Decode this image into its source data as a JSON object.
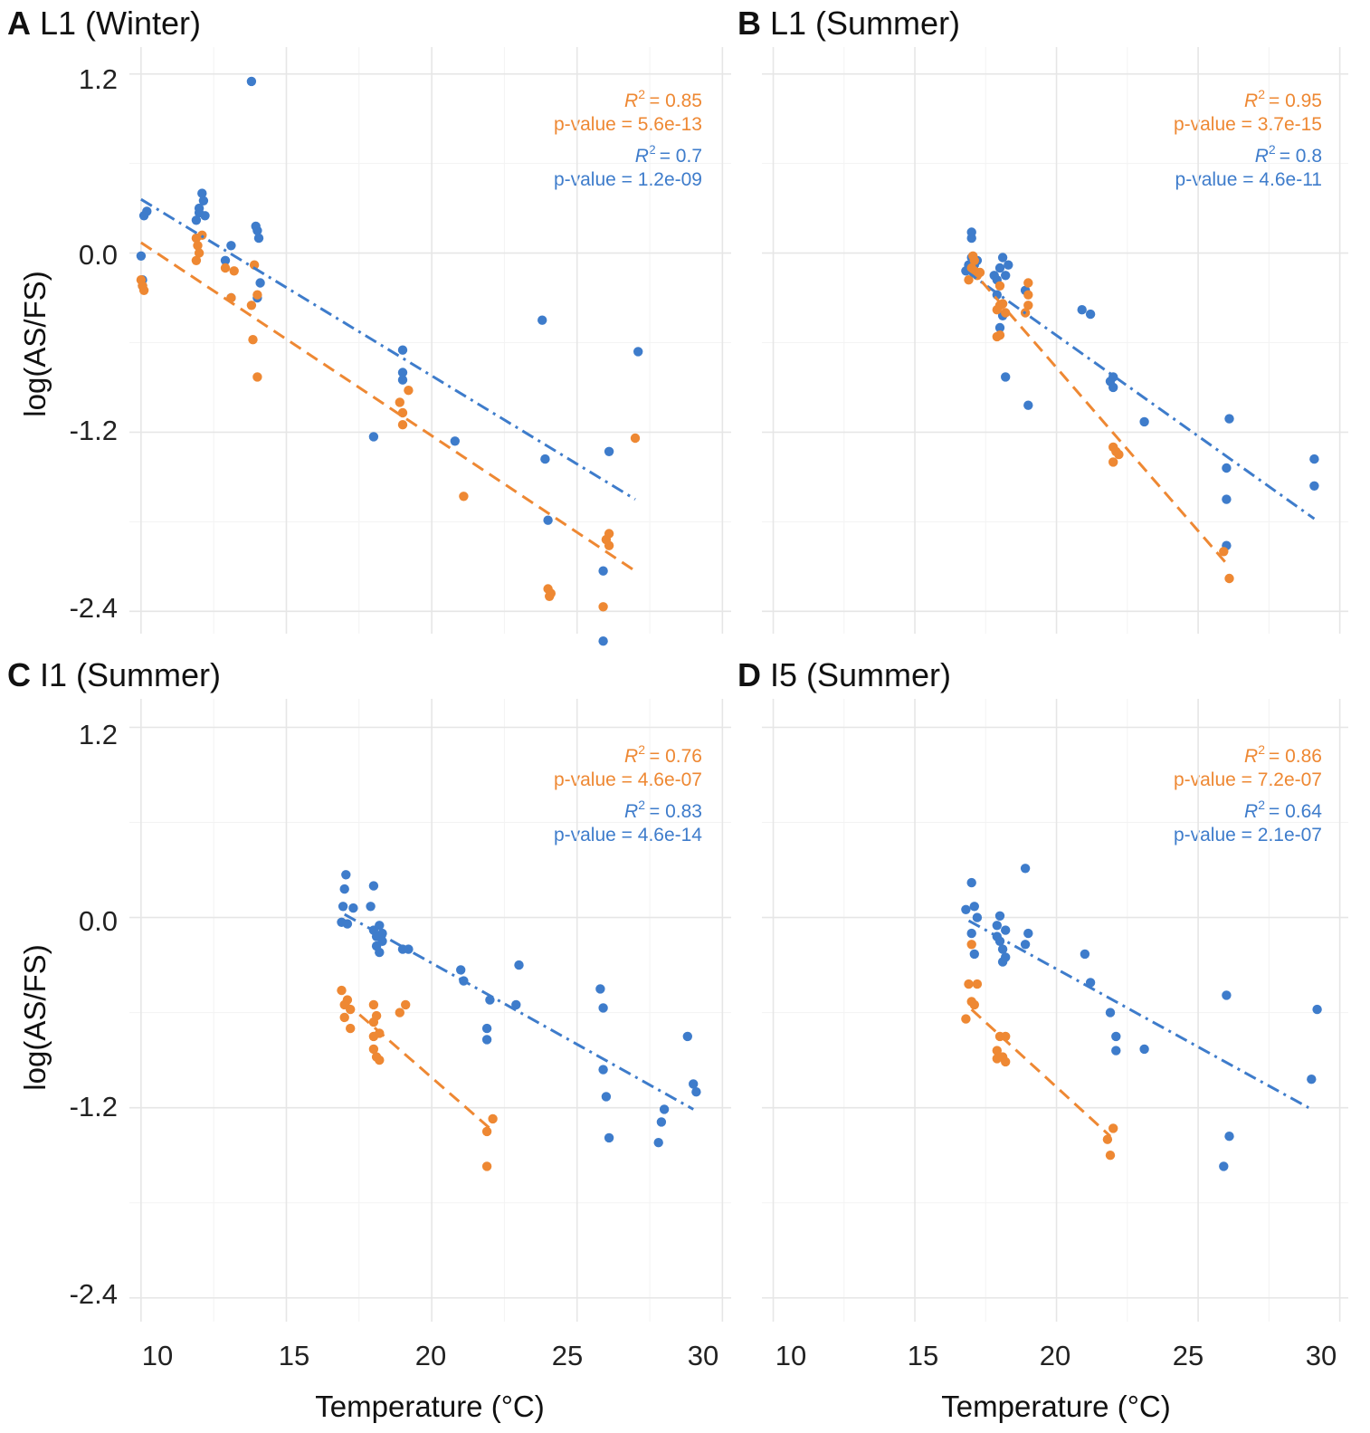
{
  "colors": {
    "orange": "#EE8833",
    "blue": "#3E7CCB",
    "grid": "#e6e6e6"
  },
  "figure": {
    "x_axis_title": "Temperature (°C)",
    "y_axis_title": "log(AS/FS)",
    "x_ticks": [
      "10",
      "15",
      "20",
      "25",
      "30"
    ],
    "y_ticks": [
      "1.2",
      "0.0",
      "-1.2",
      "-2.4"
    ]
  },
  "chart_data": [
    {
      "type": "scatter",
      "panel": "A",
      "title": "L1 (Winter)",
      "xlabel": "Temperature (°C)",
      "ylabel": "log(AS/FS)",
      "xlim": [
        9.6,
        30.3
      ],
      "ylim": [
        -2.55,
        1.38
      ],
      "legend_position": "top-right",
      "stats": {
        "orange": {
          "r2": "= 0.85",
          "p": "p-value = 5.6e-13"
        },
        "blue": {
          "r2": "= 0.7",
          "p": "p-value = 1.2e-09"
        }
      },
      "series": [
        {
          "name": "blue",
          "line_style": "dotdash",
          "fit": {
            "x": [
              10,
              27
            ],
            "y": [
              0.36,
              -1.65
            ]
          },
          "points": [
            [
              10,
              -0.02
            ],
            [
              10.05,
              -0.18
            ],
            [
              10.1,
              0.25
            ],
            [
              10.2,
              0.28
            ],
            [
              10.05,
              -0.22
            ],
            [
              11.9,
              0.22
            ],
            [
              12.0,
              0.27
            ],
            [
              12.1,
              0.4
            ],
            [
              12.15,
              0.35
            ],
            [
              12.0,
              0.3
            ],
            [
              12.2,
              0.25
            ],
            [
              12.9,
              -0.05
            ],
            [
              13.1,
              0.05
            ],
            [
              13.1,
              -0.3
            ],
            [
              13.8,
              1.15
            ],
            [
              13.95,
              0.18
            ],
            [
              14.0,
              0.15
            ],
            [
              14.05,
              0.1
            ],
            [
              14.0,
              -0.3
            ],
            [
              14.1,
              -0.2
            ],
            [
              18.0,
              -1.23
            ],
            [
              19.0,
              -0.65
            ],
            [
              19.0,
              -0.8
            ],
            [
              19.0,
              -0.85
            ],
            [
              20.8,
              -1.26
            ],
            [
              23.8,
              -0.45
            ],
            [
              23.9,
              -1.38
            ],
            [
              24.0,
              -1.79
            ],
            [
              25.9,
              -2.6
            ],
            [
              25.9,
              -2.13
            ],
            [
              26.1,
              -1.33
            ],
            [
              27.1,
              -0.66
            ]
          ]
        },
        {
          "name": "orange",
          "line_style": "dashed",
          "fit": {
            "x": [
              10,
              27
            ],
            "y": [
              0.07,
              -2.13
            ]
          },
          "points": [
            [
              10.0,
              -0.18
            ],
            [
              10.05,
              -0.22
            ],
            [
              10.1,
              -0.25
            ],
            [
              11.9,
              0.1
            ],
            [
              11.95,
              0.05
            ],
            [
              12.0,
              0.0
            ],
            [
              12.1,
              0.12
            ],
            [
              11.9,
              -0.05
            ],
            [
              12.9,
              -0.1
            ],
            [
              13.1,
              -0.3
            ],
            [
              13.2,
              -0.12
            ],
            [
              13.8,
              -0.35
            ],
            [
              13.85,
              -0.58
            ],
            [
              13.9,
              -0.08
            ],
            [
              14.0,
              -0.28
            ],
            [
              14.0,
              -0.83
            ],
            [
              18.9,
              -1.0
            ],
            [
              19.0,
              -1.07
            ],
            [
              19.0,
              -1.15
            ],
            [
              19.2,
              -0.92
            ],
            [
              21.1,
              -1.63
            ],
            [
              24.0,
              -2.25
            ],
            [
              24.05,
              -2.3
            ],
            [
              24.1,
              -2.28
            ],
            [
              25.9,
              -2.37
            ],
            [
              26.0,
              -1.92
            ],
            [
              26.1,
              -1.96
            ],
            [
              26.1,
              -1.88
            ],
            [
              27.0,
              -1.24
            ]
          ]
        }
      ]
    },
    {
      "type": "scatter",
      "panel": "B",
      "title": "L1 (Summer)",
      "xlabel": "Temperature (°C)",
      "ylabel": "",
      "xlim": [
        9.6,
        30.3
      ],
      "ylim": [
        -2.55,
        1.38
      ],
      "legend_position": "top-right",
      "stats": {
        "orange": {
          "r2": "= 0.95",
          "p": "p-value = 3.7e-15"
        },
        "blue": {
          "r2": "= 0.8",
          "p": "p-value = 4.6e-11"
        }
      },
      "series": [
        {
          "name": "blue",
          "line_style": "dotdash",
          "fit": {
            "x": [
              16.8,
              29.1
            ],
            "y": [
              -0.12,
              -1.78
            ]
          },
          "points": [
            [
              16.8,
              -0.12
            ],
            [
              16.9,
              -0.08
            ],
            [
              17.0,
              0.1
            ],
            [
              17.0,
              0.14
            ],
            [
              17.0,
              -0.03
            ],
            [
              17.1,
              -0.08
            ],
            [
              17.2,
              -0.05
            ],
            [
              17.8,
              -0.15
            ],
            [
              17.9,
              -0.18
            ],
            [
              17.9,
              -0.28
            ],
            [
              18.0,
              -0.1
            ],
            [
              18.0,
              -0.5
            ],
            [
              18.1,
              -0.03
            ],
            [
              18.1,
              -0.42
            ],
            [
              18.2,
              -0.15
            ],
            [
              18.2,
              -0.83
            ],
            [
              18.3,
              -0.08
            ],
            [
              18.9,
              -0.25
            ],
            [
              19.0,
              -1.02
            ],
            [
              20.9,
              -0.38
            ],
            [
              21.2,
              -0.41
            ],
            [
              21.9,
              -0.86
            ],
            [
              22.0,
              -0.9
            ],
            [
              22.0,
              -0.83
            ],
            [
              23.1,
              -1.13
            ],
            [
              26.0,
              -1.44
            ],
            [
              26.0,
              -1.65
            ],
            [
              26.0,
              -1.96
            ],
            [
              26.1,
              -1.11
            ],
            [
              29.1,
              -1.38
            ],
            [
              29.1,
              -1.56
            ]
          ]
        },
        {
          "name": "orange",
          "line_style": "dashed",
          "fit": {
            "x": [
              16.9,
              26.0
            ],
            "y": [
              -0.09,
              -2.08
            ]
          },
          "points": [
            [
              16.9,
              -0.18
            ],
            [
              17.0,
              -0.1
            ],
            [
              17.05,
              -0.02
            ],
            [
              17.1,
              -0.05
            ],
            [
              17.1,
              -0.12
            ],
            [
              17.2,
              -0.15
            ],
            [
              17.3,
              -0.13
            ],
            [
              17.9,
              -0.38
            ],
            [
              18.0,
              -0.22
            ],
            [
              18.0,
              -0.35
            ],
            [
              18.1,
              -0.34
            ],
            [
              18.2,
              -0.4
            ],
            [
              18.0,
              -0.55
            ],
            [
              17.9,
              -0.56
            ],
            [
              19.0,
              -0.2
            ],
            [
              19.0,
              -0.35
            ],
            [
              19.0,
              -0.28
            ],
            [
              18.9,
              -0.4
            ],
            [
              22.0,
              -1.3
            ],
            [
              22.1,
              -1.33
            ],
            [
              22.0,
              -1.4
            ],
            [
              22.2,
              -1.35
            ],
            [
              25.9,
              -2.0
            ],
            [
              26.1,
              -2.18
            ]
          ]
        }
      ]
    },
    {
      "type": "scatter",
      "panel": "C",
      "title": "I1 (Summer)",
      "xlabel": "Temperature (°C)",
      "ylabel": "log(AS/FS)",
      "xlim": [
        9.6,
        30.3
      ],
      "ylim": [
        -2.55,
        1.38
      ],
      "legend_position": "top-right",
      "stats": {
        "orange": {
          "r2": "= 0.76",
          "p": "p-value = 4.6e-07"
        },
        "blue": {
          "r2": "= 0.83",
          "p": "p-value = 4.6e-14"
        }
      },
      "series": [
        {
          "name": "blue",
          "line_style": "dotdash",
          "fit": {
            "x": [
              17.0,
              29.0
            ],
            "y": [
              0.02,
              -1.21
            ]
          },
          "points": [
            [
              16.9,
              -0.03
            ],
            [
              16.95,
              0.07
            ],
            [
              17.0,
              0.18
            ],
            [
              17.05,
              0.27
            ],
            [
              17.1,
              -0.04
            ],
            [
              17.3,
              0.06
            ],
            [
              17.9,
              0.07
            ],
            [
              18.0,
              -0.08
            ],
            [
              18.0,
              0.2
            ],
            [
              18.1,
              -0.12
            ],
            [
              18.1,
              -0.18
            ],
            [
              18.2,
              -0.05
            ],
            [
              18.2,
              -0.22
            ],
            [
              18.3,
              -0.1
            ],
            [
              18.3,
              -0.15
            ],
            [
              19.0,
              -0.2
            ],
            [
              19.2,
              -0.2
            ],
            [
              21.0,
              -0.33
            ],
            [
              21.1,
              -0.4
            ],
            [
              21.9,
              -0.7
            ],
            [
              21.9,
              -0.77
            ],
            [
              22.0,
              -0.52
            ],
            [
              22.9,
              -0.55
            ],
            [
              23.0,
              -0.3
            ],
            [
              25.8,
              -0.45
            ],
            [
              25.9,
              -0.57
            ],
            [
              25.9,
              -0.96
            ],
            [
              26.0,
              -1.13
            ],
            [
              26.1,
              -1.39
            ],
            [
              27.8,
              -1.42
            ],
            [
              27.9,
              -1.29
            ],
            [
              28.0,
              -1.21
            ],
            [
              28.8,
              -0.75
            ],
            [
              29.0,
              -1.05
            ],
            [
              29.1,
              -1.1
            ]
          ]
        },
        {
          "name": "orange",
          "line_style": "dashed",
          "fit": {
            "x": [
              17.0,
              22.0
            ],
            "y": [
              -0.53,
              -1.33
            ]
          },
          "points": [
            [
              16.9,
              -0.46
            ],
            [
              17.0,
              -0.55
            ],
            [
              17.0,
              -0.63
            ],
            [
              17.1,
              -0.52
            ],
            [
              17.2,
              -0.58
            ],
            [
              17.2,
              -0.7
            ],
            [
              18.0,
              -0.55
            ],
            [
              18.0,
              -0.66
            ],
            [
              18.0,
              -0.75
            ],
            [
              18.0,
              -0.83
            ],
            [
              18.1,
              -0.62
            ],
            [
              18.1,
              -0.88
            ],
            [
              18.2,
              -0.73
            ],
            [
              18.2,
              -0.9
            ],
            [
              18.9,
              -0.6
            ],
            [
              19.1,
              -0.55
            ],
            [
              21.9,
              -1.35
            ],
            [
              21.9,
              -1.57
            ],
            [
              22.1,
              -1.27
            ]
          ]
        }
      ]
    },
    {
      "type": "scatter",
      "panel": "D",
      "title": "I5 (Summer)",
      "xlabel": "Temperature (°C)",
      "ylabel": "",
      "xlim": [
        9.6,
        30.3
      ],
      "ylim": [
        -2.55,
        1.38
      ],
      "legend_position": "top-right",
      "stats": {
        "orange": {
          "r2": "= 0.86",
          "p": "p-value = 7.2e-07"
        },
        "blue": {
          "r2": "= 0.64",
          "p": "p-value = 2.1e-07"
        }
      },
      "series": [
        {
          "name": "blue",
          "line_style": "dotdash",
          "fit": {
            "x": [
              16.9,
              28.9
            ],
            "y": [
              -0.02,
              -1.2
            ]
          },
          "points": [
            [
              16.8,
              0.05
            ],
            [
              17.0,
              0.22
            ],
            [
              17.0,
              -0.1
            ],
            [
              17.1,
              0.07
            ],
            [
              17.1,
              -0.23
            ],
            [
              17.2,
              0.0
            ],
            [
              17.9,
              -0.05
            ],
            [
              17.9,
              -0.12
            ],
            [
              18.0,
              0.01
            ],
            [
              18.0,
              -0.15
            ],
            [
              18.1,
              -0.2
            ],
            [
              18.1,
              -0.28
            ],
            [
              18.2,
              -0.08
            ],
            [
              18.2,
              -0.25
            ],
            [
              18.9,
              0.31
            ],
            [
              18.9,
              -0.17
            ],
            [
              19.0,
              -0.1
            ],
            [
              21.0,
              -0.23
            ],
            [
              21.2,
              -0.41
            ],
            [
              21.9,
              -0.6
            ],
            [
              22.1,
              -0.75
            ],
            [
              22.1,
              -0.84
            ],
            [
              23.1,
              -0.83
            ],
            [
              25.9,
              -1.57
            ],
            [
              26.0,
              -0.49
            ],
            [
              26.1,
              -1.38
            ],
            [
              29.0,
              -1.02
            ],
            [
              29.2,
              -0.58
            ]
          ]
        },
        {
          "name": "orange",
          "line_style": "dashed",
          "fit": {
            "x": [
              17.0,
              21.9
            ],
            "y": [
              -0.58,
              -1.38
            ]
          },
          "points": [
            [
              16.8,
              -0.64
            ],
            [
              16.9,
              -0.42
            ],
            [
              17.0,
              -0.17
            ],
            [
              17.0,
              -0.53
            ],
            [
              17.1,
              -0.55
            ],
            [
              17.2,
              -0.42
            ],
            [
              17.9,
              -0.84
            ],
            [
              17.9,
              -0.89
            ],
            [
              18.0,
              -0.75
            ],
            [
              18.1,
              -0.88
            ],
            [
              18.2,
              -0.75
            ],
            [
              18.2,
              -0.91
            ],
            [
              21.8,
              -1.4
            ],
            [
              21.9,
              -1.5
            ],
            [
              22.0,
              -1.33
            ]
          ]
        }
      ]
    }
  ]
}
